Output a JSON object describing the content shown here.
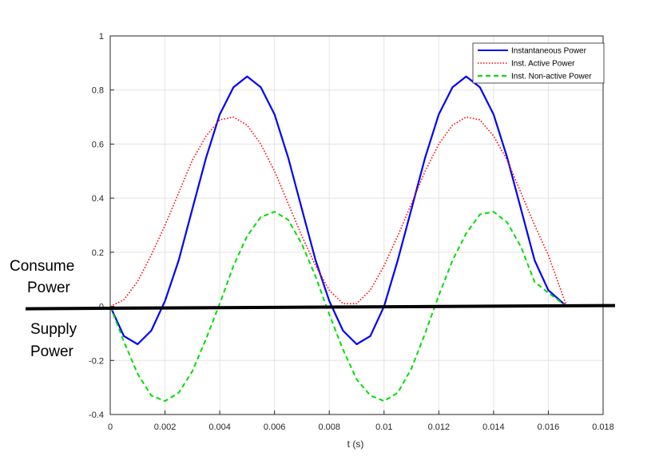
{
  "chart_data": {
    "type": "line",
    "title": "",
    "xlabel": "t (s)",
    "ylabel": "",
    "xlim": [
      0,
      0.018
    ],
    "ylim": [
      -0.4,
      1
    ],
    "grid": true,
    "legend_position": "top-right",
    "x_ticks": [
      "0",
      "0.002",
      "0.004",
      "0.006",
      "0.008",
      "0.01",
      "0.012",
      "0.014",
      "0.016",
      "0.018"
    ],
    "y_ticks": [
      "-0.4",
      "-0.2",
      "0",
      "0.2",
      "0.4",
      "0.6",
      "0.8",
      "1"
    ],
    "annotations": {
      "consume": [
        "Consume",
        "Power"
      ],
      "supply": [
        "Supply",
        "Power"
      ]
    },
    "colors": {
      "instantaneous": "#0000ff",
      "active": "#ff0000",
      "nonactive": "#00dd00",
      "zero_line": "#000000"
    },
    "series": [
      {
        "name": "Instantaneous Power",
        "style": "solid",
        "x": [
          0,
          0.0005,
          0.001,
          0.0015,
          0.002,
          0.0025,
          0.003,
          0.0035,
          0.004,
          0.0045,
          0.005,
          0.0055,
          0.006,
          0.0065,
          0.007,
          0.0075,
          0.008,
          0.0085,
          0.009,
          0.0095,
          0.01,
          0.0105,
          0.011,
          0.0115,
          0.012,
          0.0125,
          0.013,
          0.0135,
          0.014,
          0.0145,
          0.015,
          0.0155,
          0.016,
          0.01667
        ],
        "values": [
          0,
          -0.11,
          -0.14,
          -0.09,
          0.02,
          0.17,
          0.36,
          0.55,
          0.71,
          0.81,
          0.85,
          0.81,
          0.71,
          0.55,
          0.36,
          0.17,
          0.02,
          -0.09,
          -0.14,
          -0.11,
          0,
          0.17,
          0.36,
          0.55,
          0.71,
          0.81,
          0.85,
          0.81,
          0.71,
          0.55,
          0.36,
          0.17,
          0.06,
          0
        ]
      },
      {
        "name": "Inst. Active Power",
        "style": "dotted",
        "x": [
          0,
          0.0005,
          0.001,
          0.0015,
          0.002,
          0.0025,
          0.003,
          0.0035,
          0.004,
          0.0045,
          0.005,
          0.0055,
          0.006,
          0.0065,
          0.007,
          0.0075,
          0.008,
          0.0085,
          0.009,
          0.0095,
          0.01,
          0.0105,
          0.011,
          0.0115,
          0.012,
          0.0125,
          0.013,
          0.0135,
          0.014,
          0.0145,
          0.015,
          0.0155,
          0.016,
          0.01667
        ],
        "values": [
          0,
          0.024,
          0.092,
          0.19,
          0.3,
          0.42,
          0.54,
          0.63,
          0.69,
          0.7,
          0.67,
          0.6,
          0.5,
          0.38,
          0.26,
          0.15,
          0.06,
          0.01,
          0.01,
          0.06,
          0.15,
          0.26,
          0.38,
          0.5,
          0.6,
          0.67,
          0.7,
          0.69,
          0.63,
          0.54,
          0.42,
          0.3,
          0.19,
          0
        ]
      },
      {
        "name": "Inst. Non-active Power",
        "style": "dashed",
        "x": [
          0,
          0.0005,
          0.001,
          0.0015,
          0.002,
          0.0025,
          0.003,
          0.0035,
          0.004,
          0.0045,
          0.005,
          0.0055,
          0.006,
          0.0065,
          0.007,
          0.0075,
          0.008,
          0.0085,
          0.009,
          0.0095,
          0.01,
          0.0105,
          0.011,
          0.0115,
          0.012,
          0.0125,
          0.013,
          0.0135,
          0.014,
          0.0145,
          0.015,
          0.0155,
          0.016,
          0.01667
        ],
        "values": [
          0,
          -0.13,
          -0.25,
          -0.33,
          -0.35,
          -0.32,
          -0.24,
          -0.12,
          0.01,
          0.15,
          0.26,
          0.33,
          0.35,
          0.32,
          0.23,
          0.11,
          -0.03,
          -0.16,
          -0.27,
          -0.33,
          -0.35,
          -0.32,
          -0.23,
          -0.1,
          0.04,
          0.17,
          0.27,
          0.34,
          0.35,
          0.31,
          0.22,
          0.09,
          0.05,
          0
        ]
      }
    ]
  }
}
